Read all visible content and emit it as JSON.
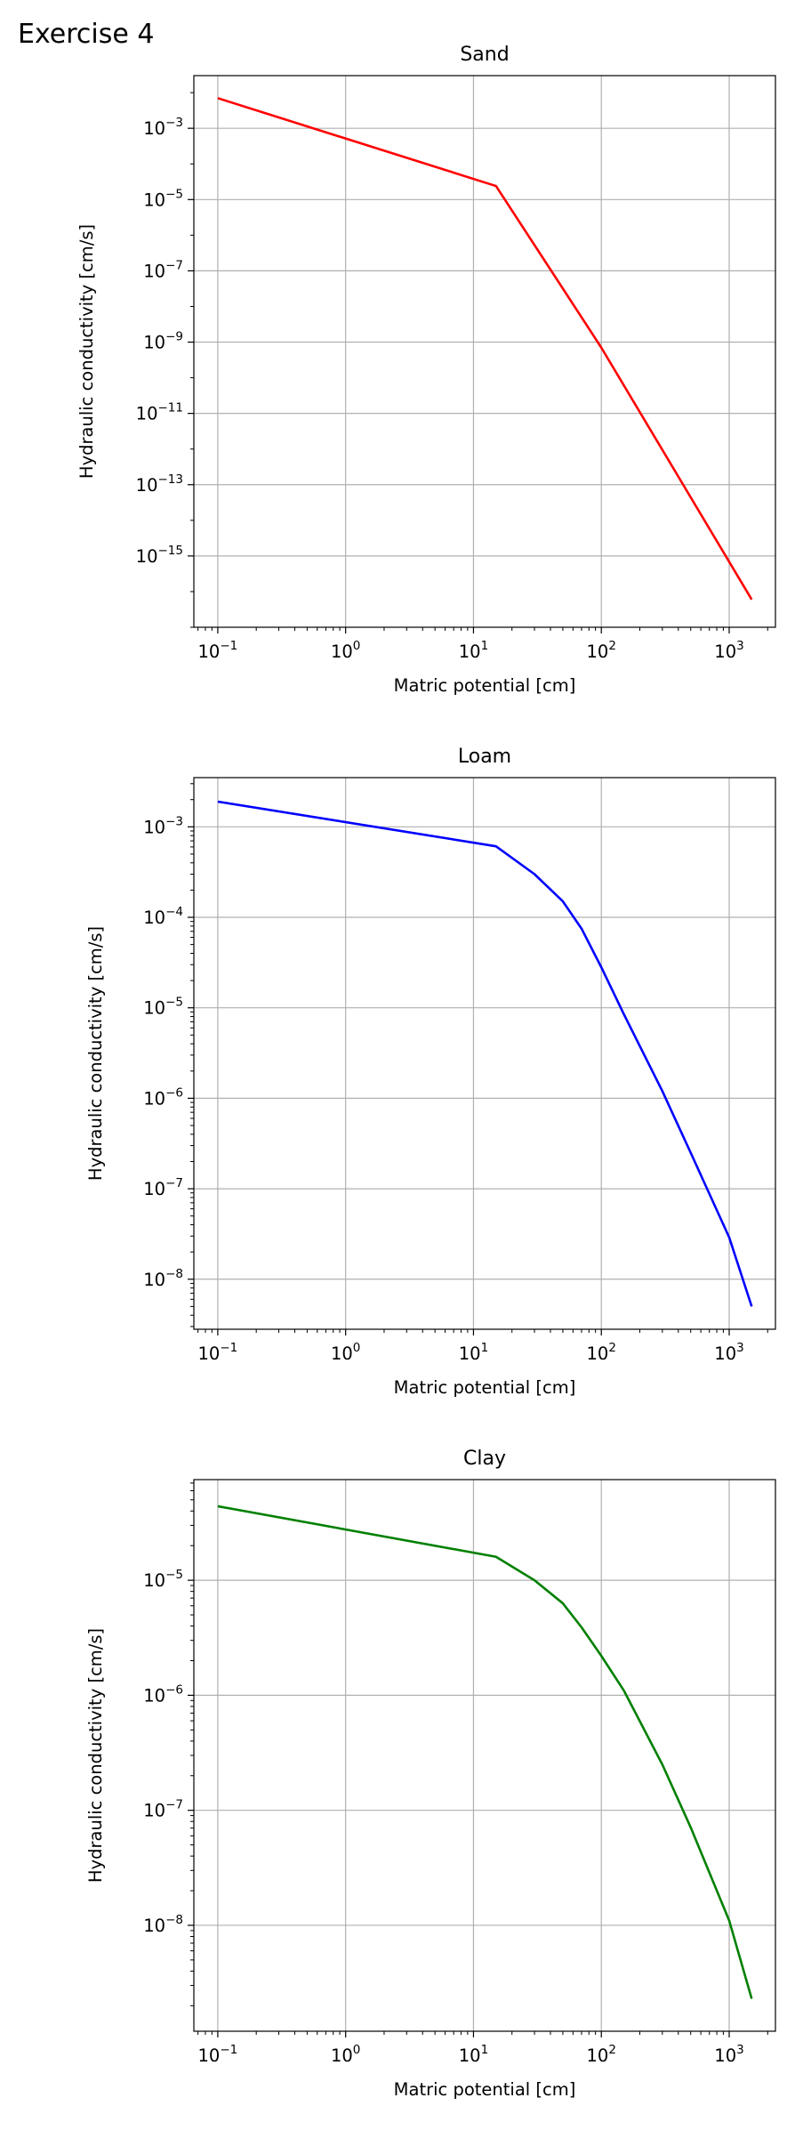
{
  "figure_title": "Exercise 4",
  "colors": {
    "Sand": "#ff0000",
    "Loam": "#0000ff",
    "Clay": "#008000",
    "grid": "#b0b0b0"
  },
  "chart_data": [
    {
      "type": "line",
      "title": "Sand",
      "xlabel": "Matric potential [cm]",
      "ylabel": "Hydraulic conductivity [cm/s]",
      "xscale": "log",
      "yscale": "log",
      "grid": true,
      "xlim": [
        0.065,
        2300
      ],
      "ylim": [
        1e-17,
        0.03
      ],
      "x_tick_exponents": [
        -1,
        0,
        1,
        2,
        3
      ],
      "y_tick_exponents": [
        -15,
        -13,
        -11,
        -9,
        -7,
        -5,
        -3
      ],
      "series": [
        {
          "color": "#ff0000",
          "x": [
            0.1,
            15,
            100,
            1500
          ],
          "y": [
            0.007,
            2.4e-05,
            7e-10,
            6e-17
          ]
        }
      ]
    },
    {
      "type": "line",
      "title": "Loam",
      "xlabel": "Matric potential [cm]",
      "ylabel": "Hydraulic conductivity [cm/s]",
      "xscale": "log",
      "yscale": "log",
      "grid": true,
      "xlim": [
        0.065,
        2300
      ],
      "ylim": [
        2.8e-09,
        0.0035
      ],
      "x_tick_exponents": [
        -1,
        0,
        1,
        2,
        3
      ],
      "y_tick_exponents": [
        -8,
        -7,
        -6,
        -5,
        -4,
        -3
      ],
      "series": [
        {
          "color": "#0000ff",
          "x": [
            0.1,
            15,
            30,
            50,
            70,
            100,
            150,
            300,
            500,
            1000,
            1500
          ],
          "y": [
            0.0019,
            0.00061,
            0.0003,
            0.00015,
            7.5e-05,
            2.8e-05,
            8.5e-06,
            1.2e-06,
            2.5e-07,
            2.9e-08,
            5e-09
          ]
        }
      ]
    },
    {
      "type": "line",
      "title": "Clay",
      "xlabel": "Matric potential [cm]",
      "ylabel": "Hydraulic conductivity [cm/s]",
      "xscale": "log",
      "yscale": "log",
      "grid": true,
      "xlim": [
        0.065,
        2300
      ],
      "ylim": [
        1.2e-09,
        7.5e-05
      ],
      "x_tick_exponents": [
        -1,
        0,
        1,
        2,
        3
      ],
      "y_tick_exponents": [
        -8,
        -7,
        -6,
        -5
      ],
      "series": [
        {
          "color": "#008000",
          "x": [
            0.1,
            15,
            30,
            50,
            70,
            100,
            150,
            300,
            500,
            1000,
            1500
          ],
          "y": [
            4.4e-05,
            1.6e-05,
            1e-05,
            6.3e-06,
            3.9e-06,
            2.2e-06,
            1.1e-06,
            2.5e-07,
            7.1e-08,
            1.1e-08,
            2.3e-09
          ]
        }
      ]
    }
  ]
}
